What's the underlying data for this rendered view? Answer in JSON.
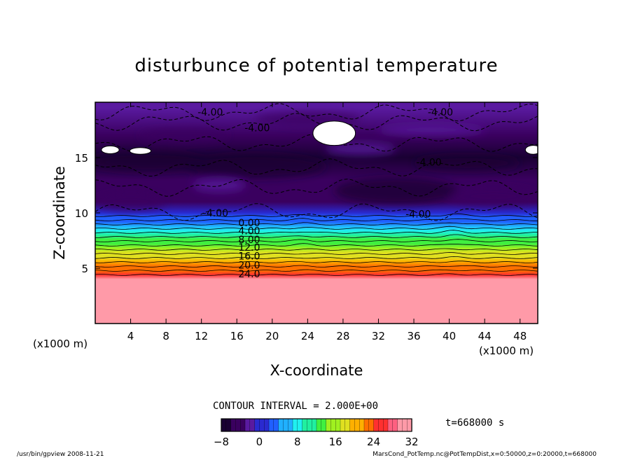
{
  "chart_data": {
    "type": "heatmap",
    "title": "disturbunce of potential temperature",
    "xlabel": "X-coordinate",
    "ylabel": "Z-coordinate",
    "x_unit_left": "(x1000 m)",
    "x_unit_right": "(x1000 m)",
    "xlim": [
      0,
      50
    ],
    "ylim": [
      0,
      20
    ],
    "xticks": [
      4,
      8,
      12,
      16,
      20,
      24,
      28,
      32,
      36,
      40,
      44,
      48
    ],
    "yticks": [
      5,
      10,
      15
    ],
    "contour_interval_text": "CONTOUR INTERVAL = 2.000E+00",
    "time_text": "t=668000 s",
    "colorbar": {
      "min": -8,
      "max": 32,
      "ticks": [
        -8,
        0,
        8,
        16,
        24,
        32
      ],
      "colors": [
        "#1a0033",
        "#3a005f",
        "#5a1aa0",
        "#2a2ad0",
        "#2060ff",
        "#20b0ff",
        "#20f0f0",
        "#20f0a0",
        "#40f040",
        "#a0f020",
        "#e0e020",
        "#ffb000",
        "#ff7000",
        "#ff3030",
        "#ff6080",
        "#ff9aa8"
      ]
    },
    "profile": {
      "z": [
        0,
        4,
        4.4,
        4.8,
        5.2,
        5.6,
        6.0,
        6.4,
        6.8,
        7.2,
        7.6,
        8.0,
        8.4,
        8.8,
        9.2,
        9.6,
        10,
        11,
        13,
        15,
        17,
        19.5
      ],
      "value": [
        30,
        30,
        26,
        24,
        22,
        20,
        18,
        17,
        16,
        14,
        12,
        10,
        8,
        6,
        4,
        2,
        0,
        -4,
        -4,
        -6,
        -4,
        -3
      ]
    },
    "contour_labels": [
      {
        "text": "-4.00",
        "x": 13,
        "y": 19.1
      },
      {
        "text": "-4.00",
        "x": 39,
        "y": 19.1
      },
      {
        "text": "-4.00",
        "x": 18.3,
        "y": 17.7
      },
      {
        "text": "-4.00",
        "x": 37.7,
        "y": 14.6
      },
      {
        "text": "-4.00",
        "x": 13.6,
        "y": 10.0
      },
      {
        "text": "-4.00",
        "x": 36.5,
        "y": 9.9
      },
      {
        "text": "0.00",
        "x": 17.4,
        "y": 9.1
      },
      {
        "text": "4.00",
        "x": 17.4,
        "y": 8.4
      },
      {
        "text": "8.00",
        "x": 17.4,
        "y": 7.6
      },
      {
        "text": "12.0",
        "x": 17.4,
        "y": 6.9
      },
      {
        "text": "16.0",
        "x": 17.4,
        "y": 6.1
      },
      {
        "text": "20.0",
        "x": 17.4,
        "y": 5.3
      },
      {
        "text": "24.0",
        "x": 17.4,
        "y": 4.5
      }
    ],
    "white_regions": [
      {
        "x": 27.0,
        "y": 17.2,
        "rx": 2.4,
        "ry": 1.1
      },
      {
        "x": 1.7,
        "y": 15.7,
        "rx": 1.0,
        "ry": 0.35
      },
      {
        "x": 5.1,
        "y": 15.6,
        "rx": 1.2,
        "ry": 0.3
      },
      {
        "x": 49.5,
        "y": 15.7,
        "rx": 0.9,
        "ry": 0.4
      }
    ]
  },
  "footer": {
    "left": "/usr/bin/gpview   2008-11-21",
    "right": "MarsCond_PotTemp.nc@PotTempDist,x=0:50000,z=0:20000,t=668000"
  }
}
